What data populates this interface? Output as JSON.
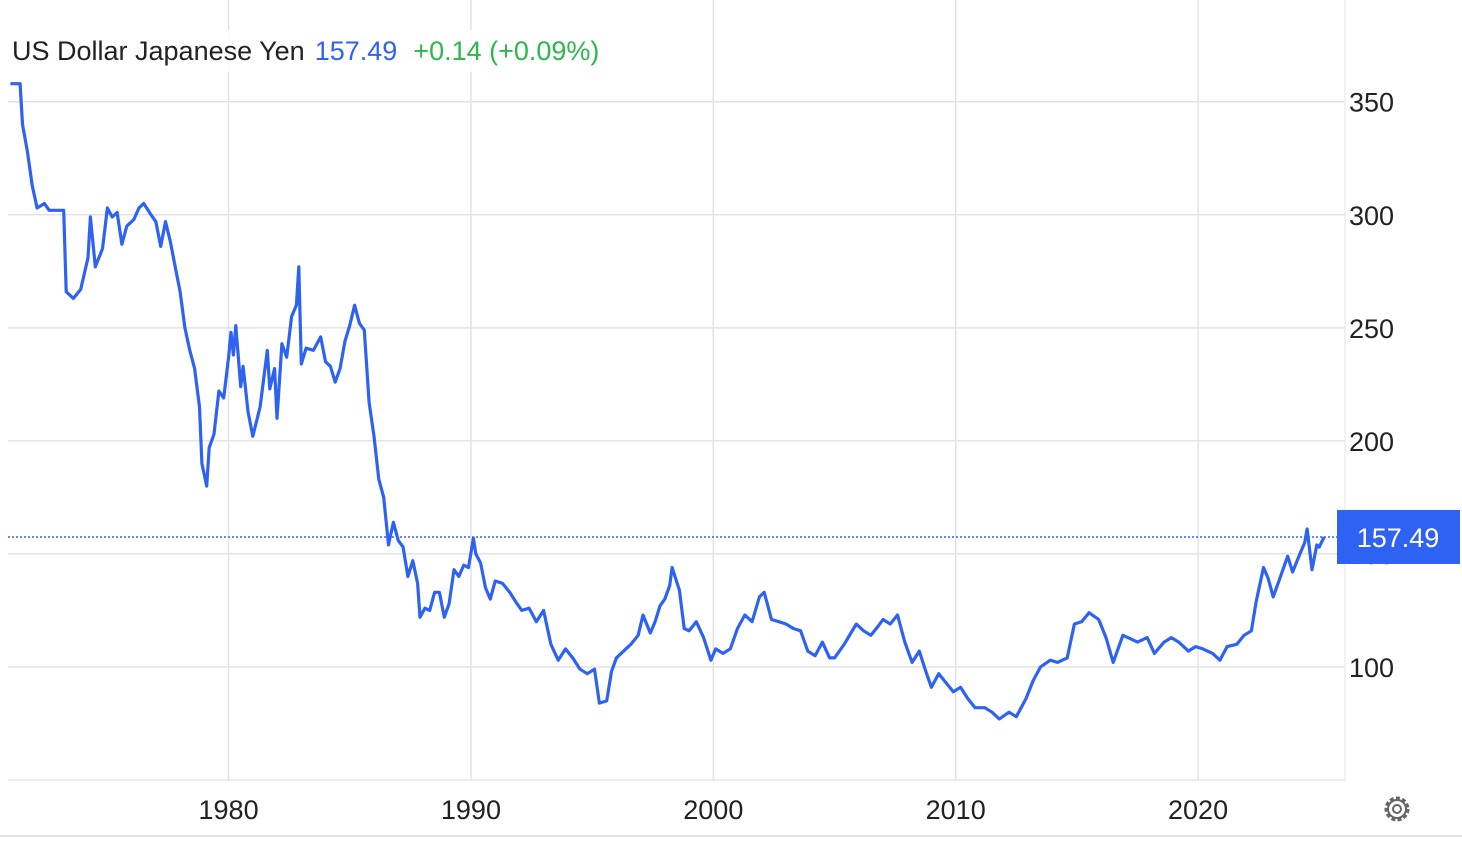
{
  "chart_data": {
    "type": "line",
    "title": "US Dollar Japanese Yen",
    "last_value": 157.49,
    "change_text": "+0.14 (+0.09%)",
    "color": "#2e62f2",
    "grid": true,
    "xlim": [
      1970.9,
      2025.65
    ],
    "xticks": [
      1980,
      1990,
      2000,
      2010,
      2020
    ],
    "ylim": [
      50,
      395
    ],
    "yticks": [
      100,
      150,
      200,
      250,
      300,
      350
    ],
    "x": [
      1971.0,
      1971.4,
      1971.5,
      1971.7,
      1971.9,
      1972.1,
      1972.4,
      1972.6,
      1973.0,
      1973.2,
      1973.3,
      1973.6,
      1973.9,
      1974.2,
      1974.3,
      1974.5,
      1974.8,
      1975.0,
      1975.2,
      1975.4,
      1975.6,
      1975.8,
      1976.1,
      1976.3,
      1976.5,
      1976.8,
      1977.0,
      1977.2,
      1977.4,
      1977.6,
      1977.8,
      1978.0,
      1978.2,
      1978.4,
      1978.6,
      1978.8,
      1978.9,
      1979.1,
      1979.2,
      1979.4,
      1979.6,
      1979.8,
      1980.0,
      1980.1,
      1980.2,
      1980.3,
      1980.5,
      1980.6,
      1980.8,
      1981.0,
      1981.3,
      1981.6,
      1981.7,
      1981.9,
      1982.0,
      1982.2,
      1982.4,
      1982.6,
      1982.8,
      1982.9,
      1983.0,
      1983.2,
      1983.5,
      1983.8,
      1984.0,
      1984.2,
      1984.4,
      1984.6,
      1984.8,
      1985.0,
      1985.2,
      1985.4,
      1985.6,
      1985.8,
      1986.0,
      1986.2,
      1986.4,
      1986.6,
      1986.8,
      1987.0,
      1987.2,
      1987.4,
      1987.6,
      1987.8,
      1987.9,
      1988.1,
      1988.3,
      1988.5,
      1988.7,
      1988.9,
      1989.1,
      1989.3,
      1989.5,
      1989.7,
      1989.9,
      1990.1,
      1990.2,
      1990.4,
      1990.6,
      1990.8,
      1991.0,
      1991.3,
      1991.6,
      1991.9,
      1992.1,
      1992.4,
      1992.7,
      1993.0,
      1993.3,
      1993.6,
      1993.9,
      1994.2,
      1994.5,
      1994.8,
      1995.1,
      1995.3,
      1995.6,
      1995.8,
      1996.0,
      1996.3,
      1996.6,
      1996.9,
      1997.1,
      1997.4,
      1997.6,
      1997.8,
      1998.0,
      1998.2,
      1998.3,
      1998.6,
      1998.8,
      1999.0,
      1999.3,
      1999.6,
      1999.9,
      2000.1,
      2000.4,
      2000.7,
      2001.0,
      2001.3,
      2001.6,
      2001.9,
      2002.1,
      2002.4,
      2002.7,
      2003.0,
      2003.3,
      2003.6,
      2003.9,
      2004.2,
      2004.5,
      2004.8,
      2005.0,
      2005.4,
      2005.9,
      2006.2,
      2006.5,
      2006.8,
      2007.0,
      2007.3,
      2007.6,
      2007.9,
      2008.2,
      2008.5,
      2008.8,
      2009.0,
      2009.3,
      2009.6,
      2009.9,
      2010.2,
      2010.5,
      2010.8,
      2011.2,
      2011.5,
      2011.8,
      2012.2,
      2012.5,
      2012.9,
      2013.2,
      2013.5,
      2013.9,
      2014.2,
      2014.6,
      2014.9,
      2015.2,
      2015.5,
      2015.9,
      2016.2,
      2016.5,
      2016.9,
      2017.1,
      2017.5,
      2017.9,
      2018.2,
      2018.6,
      2018.9,
      2019.2,
      2019.6,
      2019.9,
      2020.2,
      2020.6,
      2020.9,
      2021.2,
      2021.6,
      2021.9,
      2022.2,
      2022.4,
      2022.7,
      2022.9,
      2023.1,
      2023.4,
      2023.7,
      2023.9,
      2024.2,
      2024.4,
      2024.5,
      2024.7,
      2024.9,
      2025.0,
      2025.2
    ],
    "values": [
      358,
      358,
      340,
      328,
      313,
      303,
      305,
      302,
      302,
      302,
      266,
      263,
      267,
      281,
      299,
      277,
      285,
      303,
      299,
      301,
      287,
      295,
      298,
      303,
      305,
      300,
      297,
      286,
      297,
      288,
      277,
      266,
      250,
      240,
      232,
      215,
      190,
      180,
      197,
      203,
      222,
      219,
      237,
      248,
      238,
      251,
      224,
      233,
      213,
      202,
      215,
      240,
      223,
      232,
      210,
      243,
      237,
      255,
      260,
      277,
      234,
      241,
      240,
      246,
      235,
      233,
      226,
      232,
      244,
      251,
      260,
      252,
      249,
      217,
      202,
      183,
      175,
      154,
      164,
      156,
      153,
      140,
      147,
      137,
      122,
      126,
      125,
      133,
      133,
      122,
      128,
      143,
      140,
      145,
      144,
      157,
      150,
      146,
      135,
      130,
      138,
      137,
      133,
      128,
      125,
      126,
      120,
      125,
      110,
      103,
      108,
      104,
      99,
      97,
      99,
      84,
      85,
      98,
      104,
      107,
      110,
      114,
      123,
      115,
      120,
      127,
      130,
      136,
      144,
      134,
      117,
      116,
      120,
      113,
      103,
      108,
      106,
      108,
      117,
      123,
      120,
      131,
      133,
      121,
      120,
      119,
      117,
      116,
      107,
      105,
      111,
      104,
      104,
      110,
      119,
      116,
      114,
      118,
      121,
      119,
      123,
      111,
      102,
      107,
      97,
      91,
      97,
      93,
      89,
      91,
      86,
      82,
      82,
      80,
      77,
      80,
      78,
      86,
      94,
      100,
      103,
      102,
      104,
      119,
      120,
      124,
      121,
      113,
      102,
      114,
      113,
      111,
      113,
      106,
      111,
      113,
      111,
      107,
      109,
      108,
      106,
      103,
      109,
      110,
      114,
      116,
      129,
      144,
      139,
      131,
      140,
      149,
      142,
      150,
      155,
      161,
      143,
      154,
      153,
      157.49
    ]
  }
}
